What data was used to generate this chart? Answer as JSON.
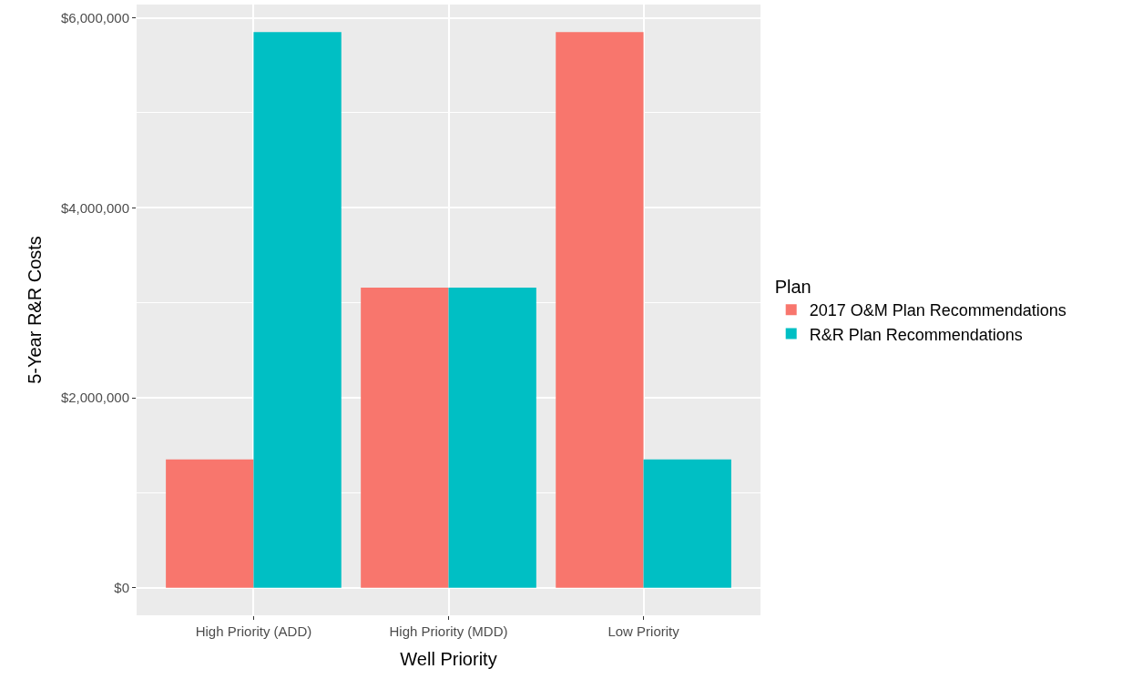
{
  "chart_data": {
    "type": "bar",
    "xlabel": "Well Priority",
    "ylabel": "5-Year R&R Costs",
    "legend_title": "Plan",
    "categories": [
      "High Priority (ADD)",
      "High Priority (MDD)",
      "Low Priority"
    ],
    "series": [
      {
        "name": "2017 O&M Plan Recommendations",
        "color": "#f8766d",
        "values": [
          1350000,
          3160000,
          5850000
        ]
      },
      {
        "name": "R&R Plan Recommendations",
        "color": "#00bfc4",
        "values": [
          5850000,
          3160000,
          1350000
        ]
      }
    ],
    "ylim": [
      -290000,
      6140000
    ],
    "yticks": [
      {
        "value": 0,
        "label": "$0"
      },
      {
        "value": 2000000,
        "label": "$2,000,000"
      },
      {
        "value": 4000000,
        "label": "$4,000,000"
      },
      {
        "value": 6000000,
        "label": "$6,000,000"
      }
    ],
    "grid": true,
    "legend": "right"
  }
}
